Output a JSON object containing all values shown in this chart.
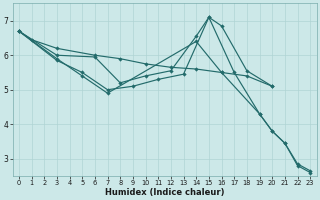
{
  "xlabel": "Humidex (Indice chaleur)",
  "bg_color": "#cce8e8",
  "grid_color": "#b0d4d4",
  "line_color": "#236b6b",
  "xlim": [
    -0.5,
    23.5
  ],
  "ylim": [
    2.5,
    7.5
  ],
  "xticks": [
    0,
    1,
    2,
    3,
    4,
    5,
    6,
    7,
    8,
    9,
    10,
    11,
    12,
    13,
    14,
    15,
    16,
    17,
    18,
    19,
    20,
    21,
    22,
    23
  ],
  "yticks": [
    3,
    4,
    5,
    6,
    7
  ],
  "series": [
    {
      "x": [
        0,
        1,
        3,
        6,
        8,
        10,
        12,
        14,
        16,
        18,
        20
      ],
      "y": [
        6.7,
        6.45,
        6.2,
        6.0,
        5.9,
        5.75,
        5.65,
        5.6,
        5.5,
        5.4,
        5.1
      ]
    },
    {
      "x": [
        0,
        3,
        6,
        8,
        10,
        12,
        14,
        15,
        16,
        18,
        20
      ],
      "y": [
        6.7,
        6.0,
        5.95,
        5.2,
        5.4,
        5.55,
        6.55,
        7.1,
        6.85,
        5.55,
        5.1
      ]
    },
    {
      "x": [
        0,
        3,
        5,
        7,
        9,
        11,
        13,
        15,
        17,
        19,
        20,
        21,
        22,
        23
      ],
      "y": [
        6.7,
        5.85,
        5.5,
        5.0,
        5.1,
        5.3,
        5.45,
        7.1,
        5.5,
        4.3,
        3.8,
        3.45,
        2.85,
        2.65
      ]
    },
    {
      "x": [
        0,
        3,
        5,
        7,
        14,
        16,
        19,
        20,
        21,
        22,
        23
      ],
      "y": [
        6.7,
        5.9,
        5.4,
        4.9,
        6.4,
        5.5,
        4.3,
        3.8,
        3.45,
        2.8,
        2.6
      ]
    }
  ]
}
